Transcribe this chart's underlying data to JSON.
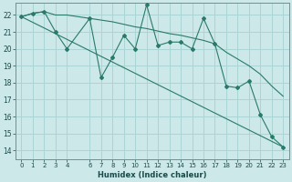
{
  "xlabel": "Humidex (Indice chaleur)",
  "bg_color": "#cce8e8",
  "grid_color": "#aad4d4",
  "line_color": "#2a7a6a",
  "xlim": [
    -0.5,
    23.5
  ],
  "ylim": [
    13.5,
    22.7
  ],
  "yticks": [
    14,
    15,
    16,
    17,
    18,
    19,
    20,
    21,
    22
  ],
  "xticks": [
    0,
    1,
    2,
    3,
    4,
    6,
    7,
    8,
    9,
    10,
    11,
    12,
    13,
    14,
    15,
    16,
    17,
    18,
    19,
    20,
    21,
    22,
    23
  ],
  "series1_x": [
    0,
    1,
    2,
    3,
    4,
    6,
    7,
    8,
    9,
    10,
    11,
    12,
    13,
    14,
    15,
    16,
    17,
    18,
    19,
    20,
    21,
    22,
    23
  ],
  "series1_y": [
    21.9,
    22.1,
    22.2,
    21.0,
    20.0,
    21.8,
    18.3,
    19.5,
    20.8,
    20.0,
    22.6,
    20.2,
    20.4,
    20.4,
    20.0,
    21.8,
    20.3,
    17.8,
    17.7,
    18.1,
    16.1,
    14.8,
    14.2
  ],
  "series2_x": [
    0,
    1,
    2,
    3,
    4,
    6,
    7,
    8,
    9,
    10,
    11,
    12,
    13,
    14,
    15,
    16,
    17,
    18,
    19,
    20,
    21,
    22,
    23
  ],
  "series2_y": [
    21.9,
    22.1,
    22.2,
    22.0,
    22.0,
    21.8,
    21.7,
    21.6,
    21.45,
    21.3,
    21.2,
    21.05,
    20.9,
    20.8,
    20.65,
    20.5,
    20.3,
    19.8,
    19.4,
    19.0,
    18.5,
    17.8,
    17.2
  ],
  "series3_x": [
    0,
    23
  ],
  "series3_y": [
    21.9,
    14.2
  ]
}
